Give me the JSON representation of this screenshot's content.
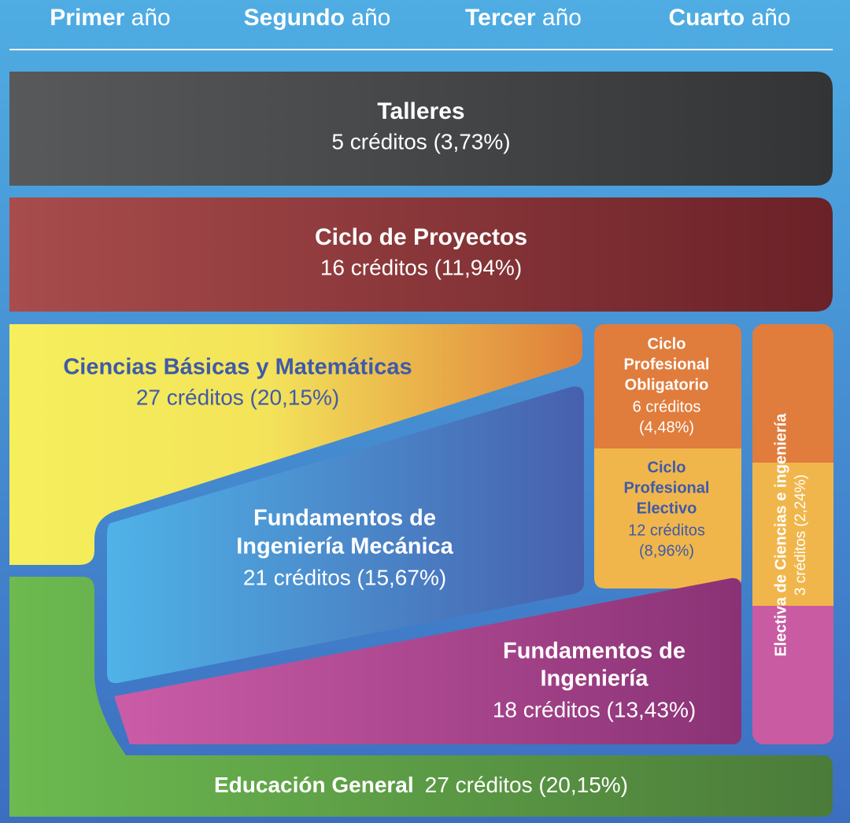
{
  "header": {
    "years": [
      {
        "bold": "Primer",
        "rest": "año"
      },
      {
        "bold": "Segundo",
        "rest": "año"
      },
      {
        "bold": "Tercer",
        "rest": "año"
      },
      {
        "bold": "Cuarto",
        "rest": "año"
      }
    ]
  },
  "blocks": {
    "talleres": {
      "title": [
        "Talleres"
      ],
      "credits": [
        "5 créditos (3,73%)"
      ]
    },
    "proyectos": {
      "title": [
        "Ciclo de Proyectos"
      ],
      "credits": [
        "16 créditos (11,94%)"
      ]
    },
    "ciencias": {
      "title": [
        "Ciencias Básicas y Matemáticas"
      ],
      "credits": [
        "27 créditos (20,15%)"
      ]
    },
    "mecanica": {
      "title": [
        "Fundamentos de",
        "Ingeniería Mecánica"
      ],
      "credits": [
        "21 créditos (15,67%)"
      ]
    },
    "obligatorio": {
      "title": [
        "Ciclo",
        "Profesional",
        "Obligatorio"
      ],
      "credits": [
        "6 créditos",
        "(4,48%)"
      ]
    },
    "electivo": {
      "title": [
        "Ciclo",
        "Profesional",
        "Electivo"
      ],
      "credits": [
        "12 créditos",
        "(8,96%)"
      ]
    },
    "electiva": {
      "title": [
        "Electiva de Ciencias e ingeniería"
      ],
      "credits": [
        "3 créditos (2,24%)"
      ]
    },
    "ingenieria": {
      "title": [
        "Fundamentos de",
        "Ingeniería"
      ],
      "credits": [
        "18 créditos (13,43%)"
      ]
    },
    "general": {
      "title": [
        "Educación General"
      ],
      "credits": [
        "27 créditos (20,15%)"
      ]
    }
  }
}
